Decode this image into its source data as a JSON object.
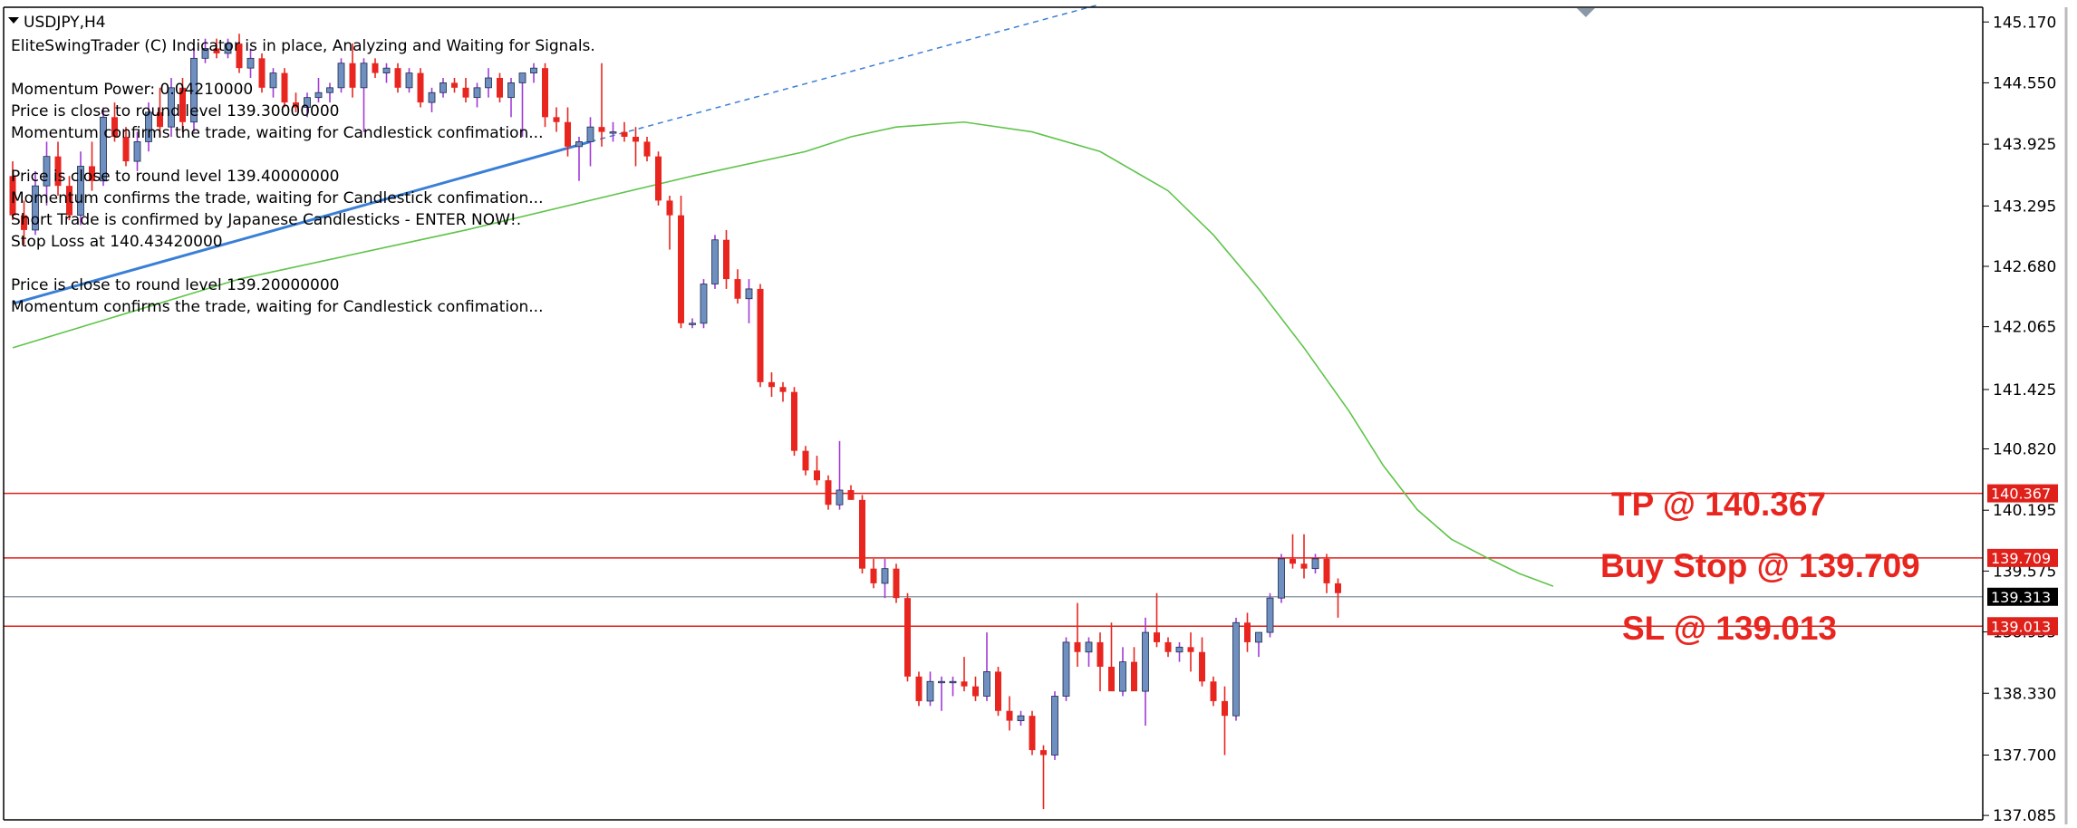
{
  "window": {
    "symbol_label": "USDJPY,H4"
  },
  "info_lines": [
    "EliteSwingTrader (C) Indicator is in place, Analyzing and Waiting for Signals.",
    "",
    "Momentum Power: 0.04210000",
    "Price is close to round level 139.30000000",
    "Momentum confirms the trade, waiting for Candlestick confimation...",
    "",
    "Price is close to round level 139.40000000",
    "Momentum confirms the trade, waiting for Candlestick confimation...",
    "Short Trade is confirmed by Japanese Candlesticks - ENTER NOW!.",
    "Stop Loss at 140.43420000",
    "",
    "Price is close to round level 139.20000000",
    "Momentum confirms the trade, waiting for Candlestick confimation..."
  ],
  "annotations": {
    "tp": "TP @ 140.367",
    "buy_stop": "Buy Stop @ 139.709",
    "sl": "SL @ 139.013"
  },
  "colors": {
    "bull_body": "#6f8fc0",
    "bull_wick": "#a23ad6",
    "bear": "#e8261f",
    "level_line": "#e0201a",
    "current_line": "#7f8c9a",
    "ma_line": "#5fc44a",
    "trend_line": "#3a7fd6",
    "axis": "#000000",
    "price_tag_bg": "#000000"
  },
  "chart_data": {
    "type": "candlestick",
    "symbol": "USDJPY",
    "timeframe": "H4",
    "ylim": [
      137.04,
      145.32
    ],
    "y_ticks": [
      "145.170",
      "144.550",
      "143.925",
      "143.295",
      "142.680",
      "142.065",
      "141.425",
      "140.820",
      "140.195",
      "139.575",
      "138.955",
      "138.330",
      "137.700",
      "137.085"
    ],
    "price_tags": [
      {
        "name": "tp",
        "value": 140.367,
        "label": "140.367"
      },
      {
        "name": "buy-stop",
        "value": 139.709,
        "label": "139.709"
      },
      {
        "name": "current",
        "value": 139.313,
        "label": "139.313"
      },
      {
        "name": "sl",
        "value": 139.013,
        "label": "139.013"
      }
    ],
    "candles": [
      [
        143.6,
        143.75,
        143.15,
        143.2
      ],
      [
        143.2,
        143.35,
        142.9,
        143.05
      ],
      [
        143.05,
        143.65,
        143.0,
        143.5
      ],
      [
        143.5,
        143.95,
        143.3,
        143.8
      ],
      [
        143.8,
        143.95,
        143.4,
        143.5
      ],
      [
        143.5,
        143.6,
        143.15,
        143.2
      ],
      [
        143.2,
        143.85,
        143.1,
        143.7
      ],
      [
        143.7,
        143.95,
        143.45,
        143.55
      ],
      [
        143.55,
        144.3,
        143.5,
        144.2
      ],
      [
        144.2,
        144.35,
        143.95,
        144.0
      ],
      [
        144.0,
        144.1,
        143.7,
        143.75
      ],
      [
        143.75,
        144.05,
        143.65,
        143.95
      ],
      [
        143.95,
        144.35,
        143.85,
        144.25
      ],
      [
        144.25,
        144.5,
        144.0,
        144.1
      ],
      [
        144.1,
        144.6,
        144.0,
        144.5
      ],
      [
        144.5,
        144.6,
        144.05,
        144.15
      ],
      [
        144.15,
        144.9,
        144.05,
        144.8
      ],
      [
        144.8,
        145.0,
        144.75,
        144.9
      ],
      [
        144.9,
        145.0,
        144.8,
        144.85
      ],
      [
        144.85,
        145.0,
        144.8,
        144.95
      ],
      [
        144.95,
        145.05,
        144.65,
        144.7
      ],
      [
        144.7,
        144.9,
        144.6,
        144.8
      ],
      [
        144.8,
        144.85,
        144.45,
        144.5
      ],
      [
        144.5,
        144.7,
        144.4,
        144.65
      ],
      [
        144.65,
        144.7,
        144.3,
        144.35
      ],
      [
        144.35,
        144.45,
        144.25,
        144.3
      ],
      [
        144.3,
        144.45,
        144.2,
        144.4
      ],
      [
        144.4,
        144.6,
        144.35,
        144.45
      ],
      [
        144.45,
        144.55,
        144.35,
        144.5
      ],
      [
        144.5,
        144.8,
        144.45,
        144.75
      ],
      [
        144.75,
        144.95,
        144.4,
        144.5
      ],
      [
        144.5,
        144.8,
        144.05,
        144.75
      ],
      [
        144.75,
        144.8,
        144.6,
        144.65
      ],
      [
        144.65,
        144.75,
        144.55,
        144.7
      ],
      [
        144.7,
        144.75,
        144.45,
        144.5
      ],
      [
        144.5,
        144.7,
        144.45,
        144.65
      ],
      [
        144.65,
        144.7,
        144.3,
        144.35
      ],
      [
        144.35,
        144.5,
        144.25,
        144.45
      ],
      [
        144.45,
        144.6,
        144.4,
        144.55
      ],
      [
        144.55,
        144.6,
        144.45,
        144.5
      ],
      [
        144.5,
        144.6,
        144.35,
        144.4
      ],
      [
        144.4,
        144.55,
        144.3,
        144.5
      ],
      [
        144.5,
        144.7,
        144.4,
        144.6
      ],
      [
        144.6,
        144.65,
        144.35,
        144.4
      ],
      [
        144.4,
        144.6,
        144.2,
        144.55
      ],
      [
        144.55,
        144.65,
        144.0,
        144.65
      ],
      [
        144.65,
        144.75,
        144.55,
        144.7
      ],
      [
        144.7,
        144.75,
        144.1,
        144.2
      ],
      [
        144.2,
        144.3,
        144.05,
        144.15
      ],
      [
        144.15,
        144.3,
        143.8,
        143.9
      ],
      [
        143.9,
        144.0,
        143.55,
        143.95
      ],
      [
        143.95,
        144.2,
        143.7,
        144.1
      ],
      [
        144.1,
        144.75,
        143.9,
        144.05
      ],
      [
        144.05,
        144.15,
        143.95,
        144.05
      ],
      [
        144.05,
        144.15,
        143.95,
        144.0
      ],
      [
        144.0,
        144.1,
        143.7,
        143.95
      ],
      [
        143.95,
        144.0,
        143.75,
        143.8
      ],
      [
        143.8,
        143.85,
        143.3,
        143.35
      ],
      [
        143.35,
        143.4,
        142.85,
        143.2
      ],
      [
        143.2,
        143.4,
        142.05,
        142.1
      ],
      [
        142.1,
        142.15,
        142.05,
        142.1
      ],
      [
        142.1,
        142.55,
        142.05,
        142.5
      ],
      [
        142.5,
        143.0,
        142.45,
        142.95
      ],
      [
        142.95,
        143.05,
        142.45,
        142.55
      ],
      [
        142.55,
        142.65,
        142.3,
        142.35
      ],
      [
        142.35,
        142.55,
        142.1,
        142.45
      ],
      [
        142.45,
        142.5,
        141.45,
        141.5
      ],
      [
        141.5,
        141.6,
        141.35,
        141.45
      ],
      [
        141.45,
        141.5,
        141.3,
        141.4
      ],
      [
        141.4,
        141.45,
        140.75,
        140.8
      ],
      [
        140.8,
        140.85,
        140.55,
        140.6
      ],
      [
        140.6,
        140.75,
        140.45,
        140.5
      ],
      [
        140.5,
        140.55,
        140.2,
        140.25
      ],
      [
        140.25,
        140.9,
        140.2,
        140.4
      ],
      [
        140.4,
        140.45,
        140.3,
        140.3
      ],
      [
        140.3,
        140.35,
        139.55,
        139.6
      ],
      [
        139.6,
        139.7,
        139.4,
        139.45
      ],
      [
        139.45,
        139.7,
        139.3,
        139.6
      ],
      [
        139.6,
        139.65,
        139.25,
        139.3
      ],
      [
        139.3,
        139.35,
        138.45,
        138.5
      ],
      [
        138.5,
        138.55,
        138.2,
        138.25
      ],
      [
        138.25,
        138.55,
        138.2,
        138.45
      ],
      [
        138.45,
        138.5,
        138.15,
        138.45
      ],
      [
        138.45,
        138.5,
        138.3,
        138.45
      ],
      [
        138.45,
        138.7,
        138.35,
        138.4
      ],
      [
        138.4,
        138.5,
        138.25,
        138.3
      ],
      [
        138.3,
        138.95,
        138.25,
        138.55
      ],
      [
        138.55,
        138.6,
        138.1,
        138.15
      ],
      [
        138.15,
        138.3,
        137.95,
        138.05
      ],
      [
        138.05,
        138.15,
        138.0,
        138.1
      ],
      [
        138.1,
        138.15,
        137.7,
        137.75
      ],
      [
        137.75,
        137.8,
        137.15,
        137.7
      ],
      [
        137.7,
        138.35,
        137.65,
        138.3
      ],
      [
        138.3,
        138.9,
        138.25,
        138.85
      ],
      [
        138.85,
        139.25,
        138.6,
        138.75
      ],
      [
        138.75,
        138.9,
        138.6,
        138.85
      ],
      [
        138.85,
        138.95,
        138.35,
        138.6
      ],
      [
        138.6,
        139.05,
        138.4,
        138.35
      ],
      [
        138.35,
        138.8,
        138.3,
        138.65
      ],
      [
        138.65,
        138.8,
        138.4,
        138.35
      ],
      [
        138.35,
        139.1,
        138.0,
        138.95
      ],
      [
        138.95,
        139.35,
        138.8,
        138.85
      ],
      [
        138.85,
        138.9,
        138.7,
        138.75
      ],
      [
        138.75,
        138.85,
        138.65,
        138.8
      ],
      [
        138.8,
        138.95,
        138.55,
        138.75
      ],
      [
        138.75,
        138.9,
        138.4,
        138.45
      ],
      [
        138.45,
        138.5,
        138.2,
        138.25
      ],
      [
        138.25,
        138.4,
        137.7,
        138.1
      ],
      [
        138.1,
        139.1,
        138.05,
        139.05
      ],
      [
        139.05,
        139.15,
        138.75,
        138.85
      ],
      [
        138.85,
        138.95,
        138.7,
        138.95
      ],
      [
        138.95,
        139.35,
        138.9,
        139.3
      ],
      [
        139.3,
        139.75,
        139.25,
        139.7
      ],
      [
        139.7,
        139.95,
        139.6,
        139.65
      ],
      [
        139.65,
        139.95,
        139.5,
        139.6
      ],
      [
        139.6,
        139.75,
        139.55,
        139.7
      ],
      [
        139.7,
        139.75,
        139.35,
        139.45
      ],
      [
        139.45,
        139.5,
        139.1,
        139.35
      ]
    ],
    "moving_average": [
      [
        0,
        141.85
      ],
      [
        20,
        142.55
      ],
      [
        40,
        143.05
      ],
      [
        60,
        143.6
      ],
      [
        70,
        143.85
      ],
      [
        74,
        144.0
      ],
      [
        78,
        144.1
      ],
      [
        84,
        144.15
      ],
      [
        90,
        144.05
      ],
      [
        96,
        143.85
      ],
      [
        102,
        143.45
      ],
      [
        106,
        143.0
      ],
      [
        110,
        142.45
      ],
      [
        114,
        141.85
      ],
      [
        118,
        141.2
      ],
      [
        121,
        140.65
      ],
      [
        124,
        140.2
      ],
      [
        127,
        139.9
      ],
      [
        130,
        139.72
      ],
      [
        133,
        139.55
      ],
      [
        136,
        139.42
      ]
    ],
    "trend_line": {
      "solid": [
        [
          0,
          142.3
        ],
        [
          51,
          143.95
        ]
      ],
      "dashed": [
        [
          51,
          143.95
        ],
        [
          96,
          145.35
        ]
      ]
    }
  }
}
